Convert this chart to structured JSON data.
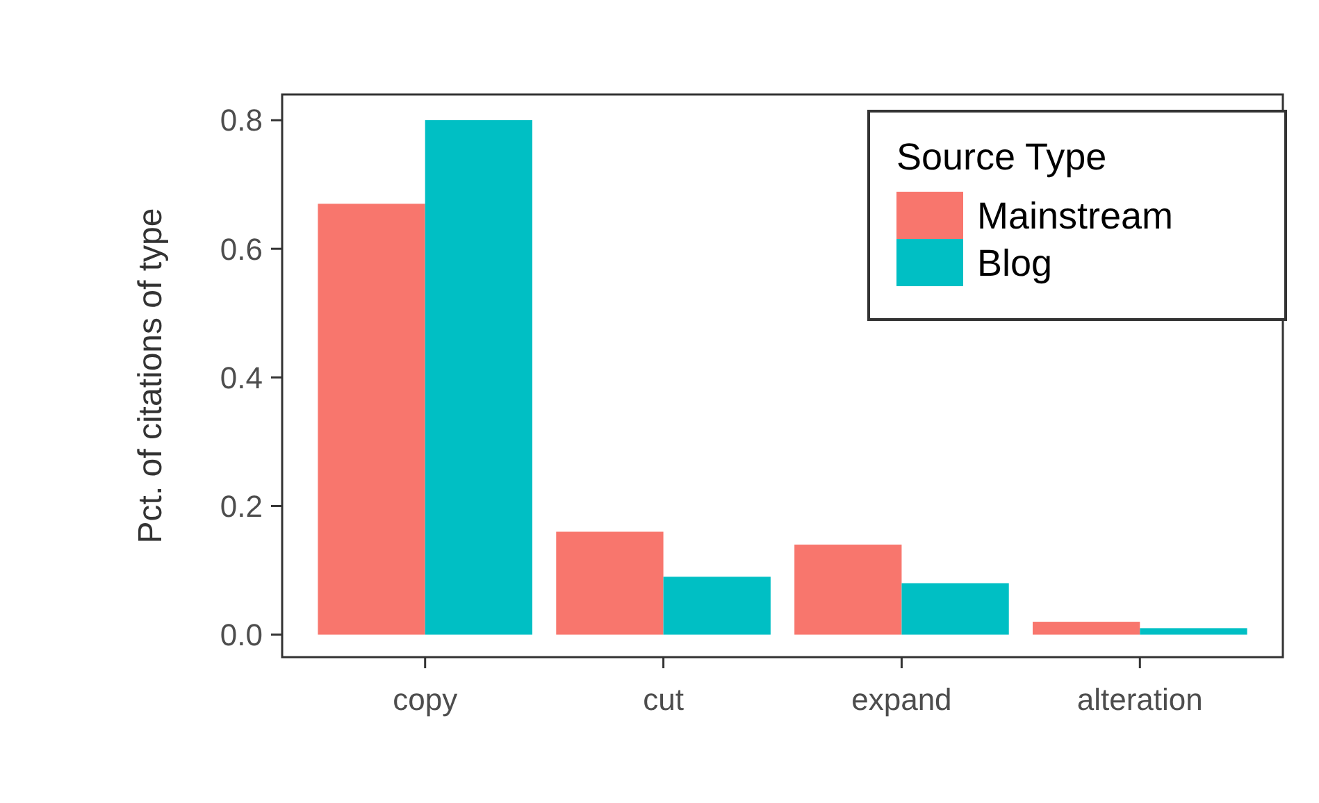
{
  "chart_data": {
    "type": "bar",
    "ylabel": "Pct. of citations of type",
    "legend_title": "Source Type",
    "categories": [
      "copy",
      "cut",
      "expand",
      "alteration"
    ],
    "series": [
      {
        "name": "Mainstream",
        "color": "#f8766d",
        "values": [
          0.67,
          0.16,
          0.14,
          0.02
        ]
      },
      {
        "name": "Blog",
        "color": "#00bfc4",
        "values": [
          0.8,
          0.09,
          0.08,
          0.01
        ]
      }
    ],
    "ylim": [
      -0.035,
      0.84
    ],
    "yticks": [
      {
        "value": 0,
        "label": "0.0"
      },
      {
        "value": 0.2,
        "label": "0.2"
      },
      {
        "value": 0.4,
        "label": "0.4"
      },
      {
        "value": 0.6,
        "label": "0.6"
      },
      {
        "value": 0.8,
        "label": "0.8"
      }
    ],
    "grid": false,
    "legend": "top right"
  }
}
